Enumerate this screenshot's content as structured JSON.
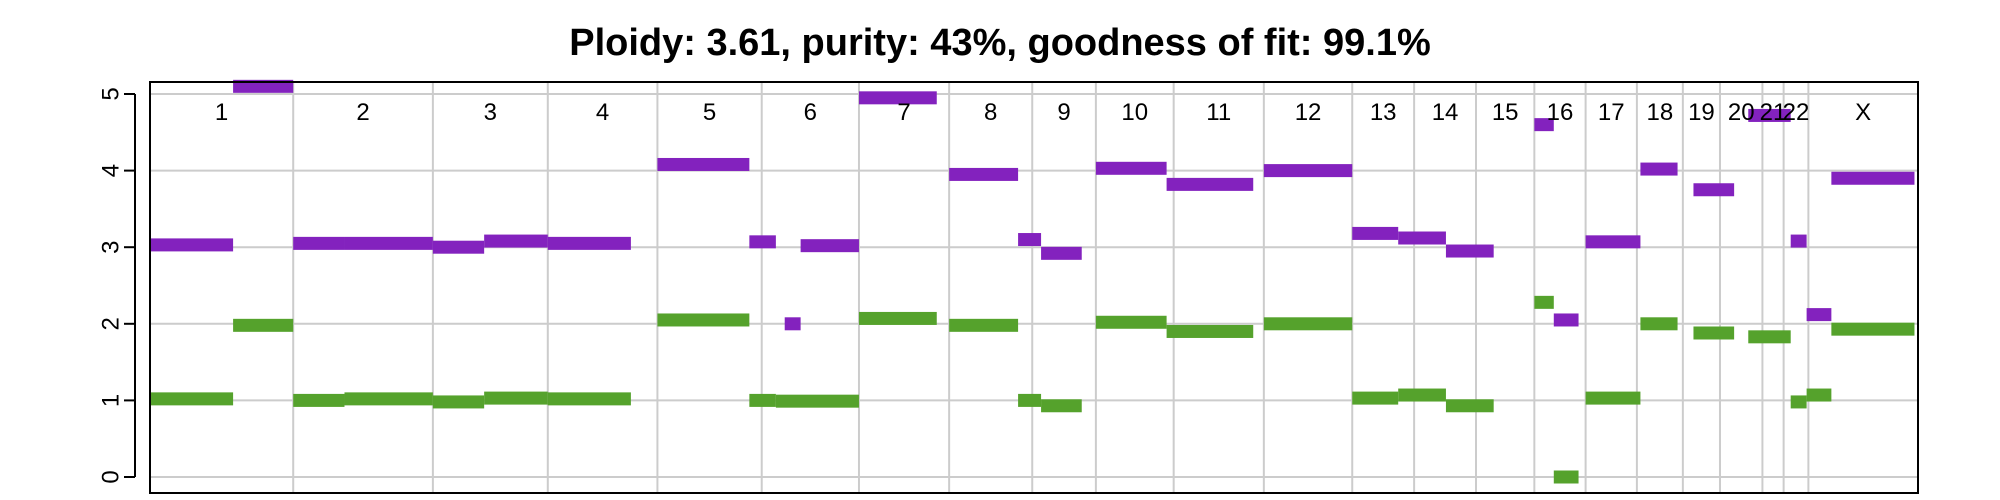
{
  "chart_data": {
    "type": "segment",
    "title": "Ploidy: 3.61, purity: 43%, goodness of fit: 99.1%",
    "xlabel": "",
    "ylabel": "",
    "ylim": [
      0,
      5
    ],
    "y_ticks": [
      "0",
      "1",
      "2",
      "3",
      "4",
      "5"
    ],
    "grid": true,
    "colors": {
      "major": "#8322be",
      "minor": "#55a22c",
      "grid": "#cccccc",
      "frame": "#000000"
    },
    "chromosomes": [
      {
        "label": "1",
        "start": 0.0,
        "end": 0.081
      },
      {
        "label": "2",
        "start": 0.081,
        "end": 0.16
      },
      {
        "label": "3",
        "start": 0.16,
        "end": 0.225
      },
      {
        "label": "4",
        "start": 0.225,
        "end": 0.287
      },
      {
        "label": "5",
        "start": 0.287,
        "end": 0.346
      },
      {
        "label": "6",
        "start": 0.346,
        "end": 0.401
      },
      {
        "label": "7",
        "start": 0.401,
        "end": 0.452
      },
      {
        "label": "8",
        "start": 0.452,
        "end": 0.499
      },
      {
        "label": "9",
        "start": 0.499,
        "end": 0.535
      },
      {
        "label": "10",
        "start": 0.535,
        "end": 0.579
      },
      {
        "label": "11",
        "start": 0.579,
        "end": 0.63
      },
      {
        "label": "12",
        "start": 0.63,
        "end": 0.68
      },
      {
        "label": "13",
        "start": 0.68,
        "end": 0.715
      },
      {
        "label": "14",
        "start": 0.715,
        "end": 0.75
      },
      {
        "label": "15",
        "start": 0.75,
        "end": 0.783
      },
      {
        "label": "16",
        "start": 0.783,
        "end": 0.812
      },
      {
        "label": "17",
        "start": 0.812,
        "end": 0.841
      },
      {
        "label": "18",
        "start": 0.841,
        "end": 0.867
      },
      {
        "label": "19",
        "start": 0.867,
        "end": 0.888
      },
      {
        "label": "20",
        "start": 0.888,
        "end": 0.912
      },
      {
        "label": "21",
        "start": 0.912,
        "end": 0.924
      },
      {
        "label": "22",
        "start": 0.924,
        "end": 0.938
      },
      {
        "label": "X",
        "start": 0.938,
        "end": 1.0
      }
    ],
    "series": [
      {
        "key": "major",
        "segments": [
          {
            "x0": 0.0,
            "x1": 0.047,
            "y": 3.03
          },
          {
            "x0": 0.047,
            "x1": 0.081,
            "y": 5.1
          },
          {
            "x0": 0.081,
            "x1": 0.11,
            "y": 3.05
          },
          {
            "x0": 0.11,
            "x1": 0.16,
            "y": 3.05
          },
          {
            "x0": 0.16,
            "x1": 0.189,
            "y": 3.0
          },
          {
            "x0": 0.189,
            "x1": 0.225,
            "y": 3.08
          },
          {
            "x0": 0.225,
            "x1": 0.272,
            "y": 3.05
          },
          {
            "x0": 0.287,
            "x1": 0.339,
            "y": 4.08
          },
          {
            "x0": 0.339,
            "x1": 0.354,
            "y": 3.07
          },
          {
            "x0": 0.359,
            "x1": 0.368,
            "y": 2.0
          },
          {
            "x0": 0.368,
            "x1": 0.401,
            "y": 3.02
          },
          {
            "x0": 0.401,
            "x1": 0.445,
            "y": 4.95
          },
          {
            "x0": 0.452,
            "x1": 0.491,
            "y": 3.95
          },
          {
            "x0": 0.491,
            "x1": 0.504,
            "y": 3.1
          },
          {
            "x0": 0.504,
            "x1": 0.527,
            "y": 2.92
          },
          {
            "x0": 0.535,
            "x1": 0.575,
            "y": 4.03
          },
          {
            "x0": 0.575,
            "x1": 0.624,
            "y": 3.82
          },
          {
            "x0": 0.63,
            "x1": 0.68,
            "y": 4.0
          },
          {
            "x0": 0.68,
            "x1": 0.706,
            "y": 3.18
          },
          {
            "x0": 0.706,
            "x1": 0.733,
            "y": 3.12
          },
          {
            "x0": 0.733,
            "x1": 0.76,
            "y": 2.95
          },
          {
            "x0": 0.783,
            "x1": 0.794,
            "y": 4.6
          },
          {
            "x0": 0.794,
            "x1": 0.808,
            "y": 2.05
          },
          {
            "x0": 0.812,
            "x1": 0.843,
            "y": 3.07
          },
          {
            "x0": 0.843,
            "x1": 0.864,
            "y": 4.02
          },
          {
            "x0": 0.873,
            "x1": 0.896,
            "y": 3.75
          },
          {
            "x0": 0.904,
            "x1": 0.928,
            "y": 4.72
          },
          {
            "x0": 0.928,
            "x1": 0.937,
            "y": 3.08
          },
          {
            "x0": 0.937,
            "x1": 0.951,
            "y": 2.12
          },
          {
            "x0": 0.951,
            "x1": 0.998,
            "y": 3.9
          }
        ]
      },
      {
        "key": "minor",
        "segments": [
          {
            "x0": 0.0,
            "x1": 0.047,
            "y": 1.02
          },
          {
            "x0": 0.047,
            "x1": 0.081,
            "y": 1.98
          },
          {
            "x0": 0.081,
            "x1": 0.11,
            "y": 1.0
          },
          {
            "x0": 0.11,
            "x1": 0.16,
            "y": 1.02
          },
          {
            "x0": 0.16,
            "x1": 0.189,
            "y": 0.98
          },
          {
            "x0": 0.189,
            "x1": 0.225,
            "y": 1.03
          },
          {
            "x0": 0.225,
            "x1": 0.272,
            "y": 1.02
          },
          {
            "x0": 0.287,
            "x1": 0.339,
            "y": 2.05
          },
          {
            "x0": 0.339,
            "x1": 0.354,
            "y": 1.0
          },
          {
            "x0": 0.354,
            "x1": 0.401,
            "y": 0.99
          },
          {
            "x0": 0.401,
            "x1": 0.445,
            "y": 2.07
          },
          {
            "x0": 0.452,
            "x1": 0.491,
            "y": 1.98
          },
          {
            "x0": 0.491,
            "x1": 0.504,
            "y": 1.0
          },
          {
            "x0": 0.504,
            "x1": 0.527,
            "y": 0.93
          },
          {
            "x0": 0.535,
            "x1": 0.575,
            "y": 2.02
          },
          {
            "x0": 0.575,
            "x1": 0.624,
            "y": 1.9
          },
          {
            "x0": 0.63,
            "x1": 0.68,
            "y": 2.0
          },
          {
            "x0": 0.68,
            "x1": 0.706,
            "y": 1.03
          },
          {
            "x0": 0.706,
            "x1": 0.733,
            "y": 1.07
          },
          {
            "x0": 0.733,
            "x1": 0.76,
            "y": 0.93
          },
          {
            "x0": 0.783,
            "x1": 0.794,
            "y": 2.28
          },
          {
            "x0": 0.794,
            "x1": 0.808,
            "y": 0.0
          },
          {
            "x0": 0.812,
            "x1": 0.843,
            "y": 1.03
          },
          {
            "x0": 0.843,
            "x1": 0.864,
            "y": 2.0
          },
          {
            "x0": 0.873,
            "x1": 0.896,
            "y": 1.88
          },
          {
            "x0": 0.904,
            "x1": 0.928,
            "y": 1.83
          },
          {
            "x0": 0.928,
            "x1": 0.937,
            "y": 0.98
          },
          {
            "x0": 0.937,
            "x1": 0.951,
            "y": 1.07
          },
          {
            "x0": 0.951,
            "x1": 0.998,
            "y": 1.93
          }
        ]
      }
    ]
  }
}
